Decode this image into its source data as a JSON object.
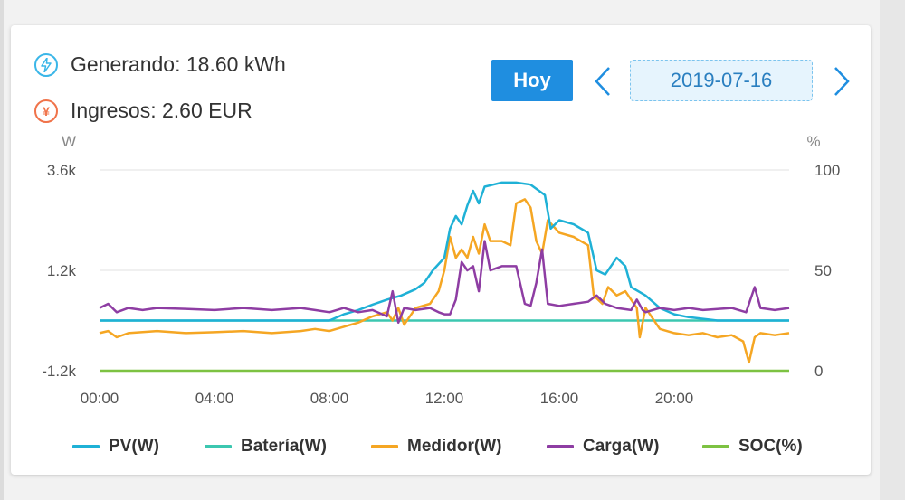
{
  "stats": {
    "generating_label": "Generando",
    "generating_value": "18.60 kWh",
    "income_label": "Ingresos",
    "income_value": "2.60 EUR"
  },
  "icons": {
    "generating": "lightning-icon",
    "income": "currency-icon",
    "prev": "chevron-left-icon",
    "next": "chevron-right-icon"
  },
  "controls": {
    "today_label": "Hoy",
    "date": "2019-07-16"
  },
  "colors": {
    "pv": "#1fb1d6",
    "bateria": "#3cc7b0",
    "medidor": "#f5a623",
    "carga": "#8e3da3",
    "soc": "#7dc242",
    "button": "#1f8ee0"
  },
  "chart_data": {
    "type": "line",
    "left_unit": "W",
    "right_unit": "%",
    "y_left_ticks": [
      "3.6k",
      "1.2k",
      "-1.2k"
    ],
    "y_right_ticks": [
      "100",
      "50",
      "0"
    ],
    "ylim_left": [
      -1200,
      3600
    ],
    "ylim_right": [
      0,
      100
    ],
    "x_ticks": [
      "00:00",
      "04:00",
      "08:00",
      "12:00",
      "16:00",
      "20:00"
    ],
    "x_range_hours": [
      0,
      24
    ],
    "grid": true,
    "legend_position": "bottom",
    "series": [
      {
        "name": "PV(W)",
        "key": "pv",
        "axis": "left",
        "points": [
          [
            0,
            0
          ],
          [
            6,
            0
          ],
          [
            8,
            0
          ],
          [
            8.5,
            150
          ],
          [
            9,
            250
          ],
          [
            9.5,
            380
          ],
          [
            10,
            500
          ],
          [
            10.5,
            600
          ],
          [
            11,
            750
          ],
          [
            11.3,
            900
          ],
          [
            11.6,
            1200
          ],
          [
            12,
            1500
          ],
          [
            12.2,
            2200
          ],
          [
            12.4,
            2500
          ],
          [
            12.6,
            2300
          ],
          [
            12.8,
            2750
          ],
          [
            13,
            3100
          ],
          [
            13.2,
            2800
          ],
          [
            13.4,
            3200
          ],
          [
            13.7,
            3250
          ],
          [
            14,
            3300
          ],
          [
            14.5,
            3300
          ],
          [
            15,
            3250
          ],
          [
            15.3,
            3100
          ],
          [
            15.5,
            3000
          ],
          [
            15.7,
            2200
          ],
          [
            16,
            2400
          ],
          [
            16.5,
            2300
          ],
          [
            17,
            2100
          ],
          [
            17.3,
            1200
          ],
          [
            17.6,
            1100
          ],
          [
            18,
            1500
          ],
          [
            18.3,
            1300
          ],
          [
            18.5,
            800
          ],
          [
            19,
            600
          ],
          [
            19.5,
            300
          ],
          [
            20,
            150
          ],
          [
            20.5,
            80
          ],
          [
            21,
            40
          ],
          [
            21.5,
            0
          ],
          [
            24,
            0
          ]
        ]
      },
      {
        "name": "Batería(W)",
        "key": "bateria",
        "axis": "left",
        "points": [
          [
            0,
            0
          ],
          [
            24,
            0
          ]
        ]
      },
      {
        "name": "Medidor(W)",
        "key": "medidor",
        "axis": "left",
        "points": [
          [
            0,
            -300
          ],
          [
            0.3,
            -250
          ],
          [
            0.6,
            -400
          ],
          [
            1,
            -300
          ],
          [
            2,
            -250
          ],
          [
            3,
            -300
          ],
          [
            4,
            -280
          ],
          [
            5,
            -250
          ],
          [
            6,
            -300
          ],
          [
            7,
            -250
          ],
          [
            7.5,
            -200
          ],
          [
            8,
            -250
          ],
          [
            8.5,
            -150
          ],
          [
            9,
            -50
          ],
          [
            9.5,
            100
          ],
          [
            10,
            200
          ],
          [
            10.2,
            0
          ],
          [
            10.4,
            300
          ],
          [
            10.6,
            -100
          ],
          [
            11,
            300
          ],
          [
            11.5,
            400
          ],
          [
            11.8,
            700
          ],
          [
            12,
            1200
          ],
          [
            12.2,
            2000
          ],
          [
            12.4,
            1500
          ],
          [
            12.6,
            1700
          ],
          [
            12.8,
            1500
          ],
          [
            13,
            2000
          ],
          [
            13.2,
            1600
          ],
          [
            13.4,
            2300
          ],
          [
            13.6,
            1900
          ],
          [
            14,
            1900
          ],
          [
            14.3,
            1800
          ],
          [
            14.5,
            2800
          ],
          [
            14.8,
            2900
          ],
          [
            15,
            2700
          ],
          [
            15.2,
            1900
          ],
          [
            15.4,
            1600
          ],
          [
            15.6,
            2400
          ],
          [
            16,
            2100
          ],
          [
            16.5,
            2000
          ],
          [
            17,
            1800
          ],
          [
            17.2,
            600
          ],
          [
            17.5,
            400
          ],
          [
            17.7,
            800
          ],
          [
            18,
            600
          ],
          [
            18.3,
            700
          ],
          [
            18.5,
            500
          ],
          [
            18.7,
            300
          ],
          [
            18.8,
            -400
          ],
          [
            19,
            300
          ],
          [
            19.5,
            -200
          ],
          [
            20,
            -300
          ],
          [
            20.5,
            -350
          ],
          [
            21,
            -300
          ],
          [
            21.5,
            -400
          ],
          [
            22,
            -350
          ],
          [
            22.4,
            -500
          ],
          [
            22.6,
            -1000
          ],
          [
            22.8,
            -400
          ],
          [
            23,
            -300
          ],
          [
            23.5,
            -350
          ],
          [
            24,
            -300
          ]
        ]
      },
      {
        "name": "Carga(W)",
        "key": "carga",
        "axis": "left",
        "points": [
          [
            0,
            300
          ],
          [
            0.3,
            400
          ],
          [
            0.6,
            200
          ],
          [
            1,
            300
          ],
          [
            1.5,
            250
          ],
          [
            2,
            300
          ],
          [
            3,
            280
          ],
          [
            4,
            250
          ],
          [
            5,
            300
          ],
          [
            6,
            250
          ],
          [
            7,
            300
          ],
          [
            7.5,
            250
          ],
          [
            8,
            200
          ],
          [
            8.5,
            300
          ],
          [
            9,
            200
          ],
          [
            9.5,
            250
          ],
          [
            10,
            100
          ],
          [
            10.2,
            700
          ],
          [
            10.4,
            -50
          ],
          [
            10.6,
            300
          ],
          [
            11,
            250
          ],
          [
            11.5,
            300
          ],
          [
            11.8,
            200
          ],
          [
            12,
            150
          ],
          [
            12.2,
            150
          ],
          [
            12.4,
            500
          ],
          [
            12.6,
            1400
          ],
          [
            12.8,
            1200
          ],
          [
            13,
            1300
          ],
          [
            13.2,
            700
          ],
          [
            13.4,
            1900
          ],
          [
            13.6,
            1200
          ],
          [
            14,
            1300
          ],
          [
            14.5,
            1300
          ],
          [
            14.8,
            400
          ],
          [
            15,
            350
          ],
          [
            15.2,
            900
          ],
          [
            15.4,
            1700
          ],
          [
            15.6,
            400
          ],
          [
            16,
            350
          ],
          [
            16.5,
            400
          ],
          [
            17,
            450
          ],
          [
            17.3,
            600
          ],
          [
            17.6,
            400
          ],
          [
            18,
            300
          ],
          [
            18.5,
            250
          ],
          [
            18.7,
            500
          ],
          [
            18.9,
            250
          ],
          [
            19,
            200
          ],
          [
            19.5,
            300
          ],
          [
            20,
            250
          ],
          [
            20.5,
            300
          ],
          [
            21,
            250
          ],
          [
            22,
            300
          ],
          [
            22.5,
            200
          ],
          [
            22.8,
            800
          ],
          [
            23,
            300
          ],
          [
            23.5,
            250
          ],
          [
            24,
            300
          ]
        ]
      },
      {
        "name": "SOC(%)",
        "key": "soc",
        "axis": "right",
        "points": [
          [
            0,
            0
          ],
          [
            24,
            0
          ]
        ]
      }
    ]
  }
}
